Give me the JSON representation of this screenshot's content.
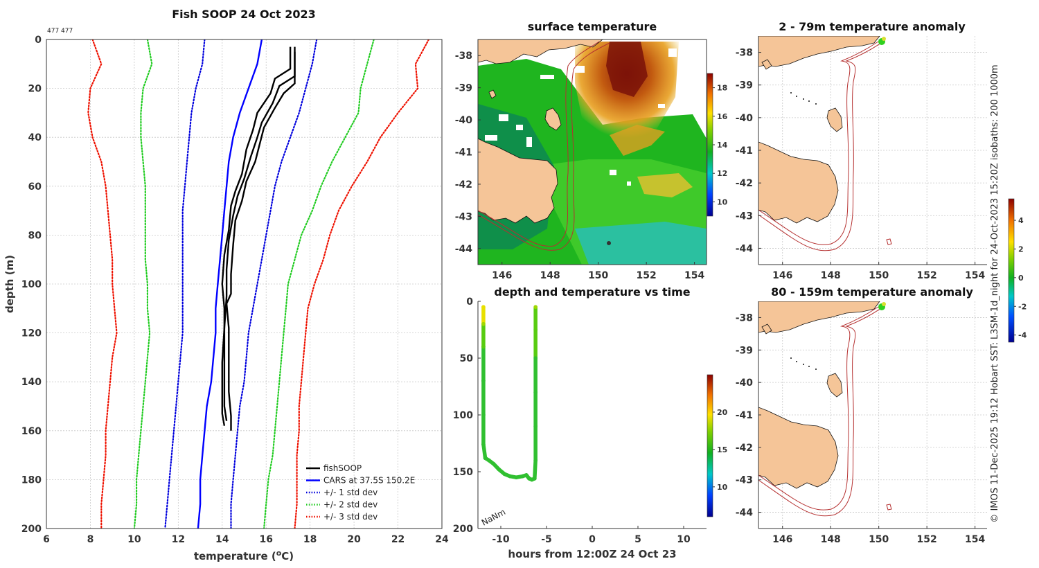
{
  "figure": {
    "credit": "© IMOS 11-Dec-2025 19:12 Hobart SST: L3SM-1d_night for 24-Oct-2023 15:20Z isobaths: 200  1000m",
    "colors": {
      "fish": "#000000",
      "cars": "#0000ff",
      "std1": "#0000dd",
      "std2": "#22cc22",
      "std3": "#ee1100",
      "land": "#f5c598",
      "isobath": "#b53030"
    }
  },
  "chart_data": [
    {
      "id": "profile",
      "type": "line",
      "title": "Fish SOOP 24 Oct 2023",
      "subtitle": "477 477",
      "xlabel": "temperature (",
      "xlabel_unit": "C)",
      "xlabel_sup": "o",
      "ylabel": "depth (m)",
      "xlim": [
        6,
        24
      ],
      "ylim": [
        0,
        200
      ],
      "y_reversed": true,
      "xticks": [
        6,
        8,
        10,
        12,
        14,
        16,
        18,
        20,
        22,
        24
      ],
      "yticks": [
        0,
        20,
        40,
        60,
        80,
        100,
        120,
        140,
        160,
        180,
        200
      ],
      "grid": true,
      "legend_position": "bottom-right",
      "legend": [
        "fishSOOP",
        "CARS at 37.5S 150.2E",
        "+/- 1 std dev",
        "+/- 2 std dev",
        "+/- 3 std dev"
      ],
      "series": [
        {
          "name": "fishSOOP",
          "style": "solid",
          "color": "#000000",
          "points": [
            [
              17.1,
              3
            ],
            [
              17.1,
              12
            ],
            [
              16.4,
              16
            ],
            [
              16.2,
              22
            ],
            [
              15.6,
              30
            ],
            [
              15.4,
              37
            ],
            [
              15.1,
              45
            ],
            [
              14.9,
              55
            ],
            [
              14.6,
              62
            ],
            [
              14.4,
              68
            ],
            [
              14.3,
              78
            ],
            [
              14.1,
              88
            ],
            [
              14.0,
              100
            ],
            [
              14.1,
              110
            ],
            [
              14.1,
              125
            ],
            [
              14.1,
              140
            ],
            [
              14.1,
              150
            ],
            [
              14.2,
              156
            ]
          ]
        },
        {
          "name": "fishSOOP",
          "style": "solid",
          "color": "#000000",
          "points": [
            [
              17.3,
              3
            ],
            [
              17.3,
              15
            ],
            [
              16.6,
              19
            ],
            [
              16.3,
              26
            ],
            [
              15.8,
              34
            ],
            [
              15.6,
              40
            ],
            [
              15.3,
              48
            ],
            [
              15.0,
              57
            ],
            [
              14.7,
              64
            ],
            [
              14.5,
              72
            ],
            [
              14.3,
              82
            ],
            [
              14.2,
              94
            ],
            [
              14.2,
              105
            ],
            [
              14.1,
              118
            ],
            [
              14.0,
              132
            ],
            [
              14.0,
              145
            ],
            [
              14.0,
              153
            ],
            [
              14.1,
              158
            ]
          ]
        },
        {
          "name": "fishSOOP",
          "style": "solid",
          "color": "#000000",
          "points": [
            [
              17.3,
              5
            ],
            [
              17.3,
              18
            ],
            [
              16.8,
              22
            ],
            [
              16.4,
              28
            ],
            [
              15.9,
              36
            ],
            [
              15.7,
              43
            ],
            [
              15.5,
              50
            ],
            [
              15.1,
              58
            ],
            [
              14.9,
              66
            ],
            [
              14.6,
              74
            ],
            [
              14.5,
              84
            ],
            [
              14.4,
              96
            ],
            [
              14.4,
              104
            ],
            [
              14.2,
              108
            ],
            [
              14.3,
              118
            ],
            [
              14.3,
              130
            ],
            [
              14.3,
              144
            ],
            [
              14.4,
              154
            ],
            [
              14.4,
              160
            ]
          ]
        },
        {
          "name": "CARS at 37.5S 150.2E",
          "style": "solid",
          "color": "#0000ff",
          "points": [
            [
              15.8,
              0
            ],
            [
              15.6,
              10
            ],
            [
              15.2,
              20
            ],
            [
              14.8,
              30
            ],
            [
              14.5,
              40
            ],
            [
              14.3,
              50
            ],
            [
              14.2,
              60
            ],
            [
              14.1,
              70
            ],
            [
              14.0,
              80
            ],
            [
              13.9,
              90
            ],
            [
              13.8,
              100
            ],
            [
              13.7,
              110
            ],
            [
              13.7,
              120
            ],
            [
              13.6,
              130
            ],
            [
              13.5,
              140
            ],
            [
              13.3,
              150
            ],
            [
              13.2,
              160
            ],
            [
              13.1,
              170
            ],
            [
              13.0,
              180
            ],
            [
              13.0,
              190
            ],
            [
              12.9,
              200
            ]
          ]
        },
        {
          "name": "+/- 1 std dev",
          "style": "dotted",
          "color": "#0000dd",
          "points": [
            [
              13.2,
              0
            ],
            [
              13.1,
              10
            ],
            [
              12.8,
              20
            ],
            [
              12.6,
              30
            ],
            [
              12.5,
              40
            ],
            [
              12.4,
              50
            ],
            [
              12.3,
              60
            ],
            [
              12.2,
              70
            ],
            [
              12.2,
              80
            ],
            [
              12.2,
              90
            ],
            [
              12.2,
              100
            ],
            [
              12.2,
              110
            ],
            [
              12.2,
              120
            ],
            [
              12.1,
              130
            ],
            [
              12.0,
              140
            ],
            [
              11.9,
              150
            ],
            [
              11.8,
              160
            ],
            [
              11.7,
              170
            ],
            [
              11.6,
              180
            ],
            [
              11.5,
              190
            ],
            [
              11.4,
              200
            ]
          ]
        },
        {
          "name": "+/- 1 std dev",
          "style": "dotted",
          "color": "#0000dd",
          "points": [
            [
              18.3,
              0
            ],
            [
              18.1,
              10
            ],
            [
              17.8,
              20
            ],
            [
              17.5,
              30
            ],
            [
              17.1,
              40
            ],
            [
              16.7,
              50
            ],
            [
              16.4,
              60
            ],
            [
              16.2,
              70
            ],
            [
              16.0,
              80
            ],
            [
              15.8,
              90
            ],
            [
              15.6,
              100
            ],
            [
              15.4,
              110
            ],
            [
              15.2,
              120
            ],
            [
              15.1,
              130
            ],
            [
              15.0,
              140
            ],
            [
              14.8,
              150
            ],
            [
              14.7,
              160
            ],
            [
              14.6,
              170
            ],
            [
              14.5,
              180
            ],
            [
              14.4,
              190
            ],
            [
              14.4,
              200
            ]
          ]
        },
        {
          "name": "+/- 2 std dev",
          "style": "dotted",
          "color": "#22cc22",
          "points": [
            [
              10.6,
              0
            ],
            [
              10.8,
              10
            ],
            [
              10.4,
              20
            ],
            [
              10.3,
              30
            ],
            [
              10.3,
              40
            ],
            [
              10.4,
              50
            ],
            [
              10.5,
              60
            ],
            [
              10.5,
              70
            ],
            [
              10.5,
              80
            ],
            [
              10.5,
              90
            ],
            [
              10.6,
              100
            ],
            [
              10.6,
              110
            ],
            [
              10.7,
              120
            ],
            [
              10.6,
              130
            ],
            [
              10.5,
              140
            ],
            [
              10.4,
              150
            ],
            [
              10.3,
              160
            ],
            [
              10.2,
              170
            ],
            [
              10.1,
              180
            ],
            [
              10.1,
              190
            ],
            [
              10.0,
              200
            ]
          ]
        },
        {
          "name": "+/- 2 std dev",
          "style": "dotted",
          "color": "#22cc22",
          "points": [
            [
              20.9,
              0
            ],
            [
              20.6,
              10
            ],
            [
              20.3,
              20
            ],
            [
              20.2,
              30
            ],
            [
              19.6,
              40
            ],
            [
              19.0,
              50
            ],
            [
              18.5,
              60
            ],
            [
              18.1,
              70
            ],
            [
              17.6,
              80
            ],
            [
              17.3,
              90
            ],
            [
              17.0,
              100
            ],
            [
              16.9,
              110
            ],
            [
              16.8,
              120
            ],
            [
              16.7,
              130
            ],
            [
              16.6,
              140
            ],
            [
              16.5,
              150
            ],
            [
              16.4,
              160
            ],
            [
              16.3,
              170
            ],
            [
              16.1,
              180
            ],
            [
              16.0,
              190
            ],
            [
              15.9,
              200
            ]
          ]
        },
        {
          "name": "+/- 3 std dev",
          "style": "dotted",
          "color": "#ee1100",
          "points": [
            [
              8.1,
              0
            ],
            [
              8.5,
              10
            ],
            [
              8.0,
              20
            ],
            [
              7.9,
              30
            ],
            [
              8.1,
              40
            ],
            [
              8.5,
              50
            ],
            [
              8.7,
              60
            ],
            [
              8.8,
              70
            ],
            [
              8.9,
              80
            ],
            [
              9.0,
              90
            ],
            [
              9.0,
              100
            ],
            [
              9.1,
              110
            ],
            [
              9.2,
              120
            ],
            [
              9.0,
              130
            ],
            [
              8.9,
              140
            ],
            [
              8.8,
              150
            ],
            [
              8.7,
              160
            ],
            [
              8.7,
              170
            ],
            [
              8.6,
              180
            ],
            [
              8.5,
              190
            ],
            [
              8.5,
              200
            ]
          ]
        },
        {
          "name": "+/- 3 std dev",
          "style": "dotted",
          "color": "#ee1100",
          "points": [
            [
              23.4,
              0
            ],
            [
              22.8,
              10
            ],
            [
              22.9,
              20
            ],
            [
              22.0,
              30
            ],
            [
              21.2,
              40
            ],
            [
              20.6,
              50
            ],
            [
              19.9,
              60
            ],
            [
              19.3,
              70
            ],
            [
              18.9,
              80
            ],
            [
              18.6,
              90
            ],
            [
              18.2,
              100
            ],
            [
              17.9,
              110
            ],
            [
              17.8,
              120
            ],
            [
              17.7,
              130
            ],
            [
              17.6,
              140
            ],
            [
              17.5,
              150
            ],
            [
              17.5,
              160
            ],
            [
              17.4,
              170
            ],
            [
              17.4,
              180
            ],
            [
              17.4,
              190
            ],
            [
              17.3,
              200
            ]
          ]
        }
      ]
    },
    {
      "id": "sst",
      "type": "heatmap",
      "title": "surface temperature",
      "xlim": [
        145,
        154.5
      ],
      "ylim": [
        -44.5,
        -37.5
      ],
      "xticks": [
        146,
        148,
        150,
        152,
        154
      ],
      "yticks": [
        -38,
        -39,
        -40,
        -41,
        -42,
        -43,
        -44
      ],
      "colorbar_range": [
        9,
        19
      ],
      "colorbar_ticks": [
        10,
        12,
        14,
        16,
        18
      ]
    },
    {
      "id": "time",
      "type": "scatter",
      "title": "depth and temperature vs time",
      "xlabel": "hours from 12:00Z 24 Oct 23",
      "xlim": [
        -12.5,
        12.5
      ],
      "ylim": [
        0,
        200
      ],
      "y_reversed": true,
      "xticks": [
        -10,
        -5,
        0,
        5,
        10
      ],
      "yticks": [
        0,
        50,
        100,
        150,
        200
      ],
      "annotation": "NaNm",
      "colorbar_range": [
        6,
        25
      ],
      "colorbar_ticks": [
        10,
        15,
        20
      ],
      "points": [
        [
          -11.9,
          5,
          20
        ],
        [
          -11.9,
          20,
          18.5
        ],
        [
          -11.9,
          40,
          16
        ],
        [
          -11.9,
          70,
          15
        ],
        [
          -11.9,
          100,
          14.5
        ],
        [
          -11.9,
          126,
          14.3
        ],
        [
          -11.7,
          138,
          14.2
        ],
        [
          -11.3,
          140,
          14.2
        ],
        [
          -10.8,
          143,
          14.1
        ],
        [
          -10.2,
          148,
          14.1
        ],
        [
          -9.6,
          152,
          14.1
        ],
        [
          -9.0,
          154,
          14
        ],
        [
          -8.3,
          155,
          14
        ],
        [
          -7.6,
          154,
          14
        ],
        [
          -7.2,
          153,
          14
        ],
        [
          -6.9,
          156,
          14
        ],
        [
          -6.6,
          157,
          14
        ],
        [
          -6.3,
          156,
          14
        ],
        [
          -6.2,
          140,
          14.3
        ],
        [
          -6.2,
          110,
          14.4
        ],
        [
          -6.2,
          80,
          14.6
        ],
        [
          -6.2,
          50,
          15.5
        ],
        [
          -6.2,
          25,
          16.5
        ],
        [
          -6.2,
          5,
          18
        ]
      ]
    },
    {
      "id": "anom1",
      "type": "heatmap",
      "title": "2 - 79m temperature anomaly",
      "xlim": [
        145,
        154.5
      ],
      "ylim": [
        -44.5,
        -37.5
      ],
      "xticks": [
        146,
        148,
        150,
        152,
        154
      ],
      "yticks": [
        -38,
        -39,
        -40,
        -41,
        -42,
        -43,
        -44
      ],
      "colorbar_range": [
        -4.5,
        5.5
      ],
      "colorbar_ticks": [
        -4,
        -2,
        0,
        2,
        4
      ]
    },
    {
      "id": "anom2",
      "type": "heatmap",
      "title": "80 - 159m temperature anomaly",
      "xlim": [
        145,
        154.5
      ],
      "ylim": [
        -44.5,
        -37.5
      ],
      "xticks": [
        146,
        148,
        150,
        152,
        154
      ],
      "yticks": [
        -38,
        -39,
        -40,
        -41,
        -42,
        -43,
        -44
      ]
    }
  ]
}
